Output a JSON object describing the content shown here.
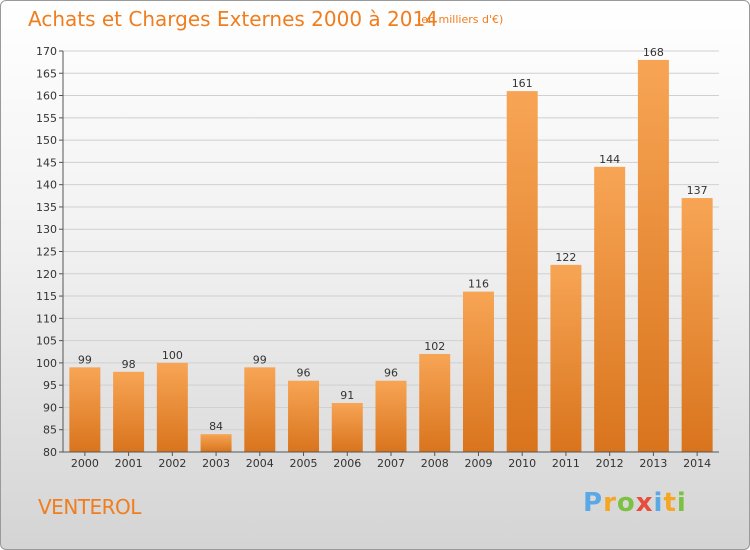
{
  "title": "Achats et Charges Externes 2000 à 2014",
  "subtitle": "(en milliers d'€)",
  "commune": "VENTEROL",
  "logo": {
    "letters": [
      "P",
      "r",
      "o",
      "x",
      "i",
      "t",
      "i"
    ],
    "colors": [
      "#5aa9e6",
      "#f5a623",
      "#7cc242",
      "#e84c3d",
      "#5aa9e6",
      "#f5a623",
      "#7cc242"
    ]
  },
  "colors": {
    "bar_light": "#f7a555",
    "bar_dark": "#d9741d",
    "title": "#f07d1e"
  },
  "chart_data": {
    "type": "bar",
    "title": "Achats et Charges Externes 2000 à 2014",
    "subtitle": "(en milliers d'€)",
    "categories": [
      "2000",
      "2001",
      "2002",
      "2003",
      "2004",
      "2005",
      "2006",
      "2007",
      "2008",
      "2009",
      "2010",
      "2011",
      "2012",
      "2013",
      "2014"
    ],
    "values": [
      99,
      98,
      100,
      84,
      99,
      96,
      91,
      96,
      102,
      116,
      161,
      122,
      144,
      168,
      137
    ],
    "ylim": [
      80,
      170
    ],
    "yticks": [
      80,
      85,
      90,
      95,
      100,
      105,
      110,
      115,
      120,
      125,
      130,
      135,
      140,
      145,
      150,
      155,
      160,
      165,
      170
    ],
    "grid": true
  }
}
